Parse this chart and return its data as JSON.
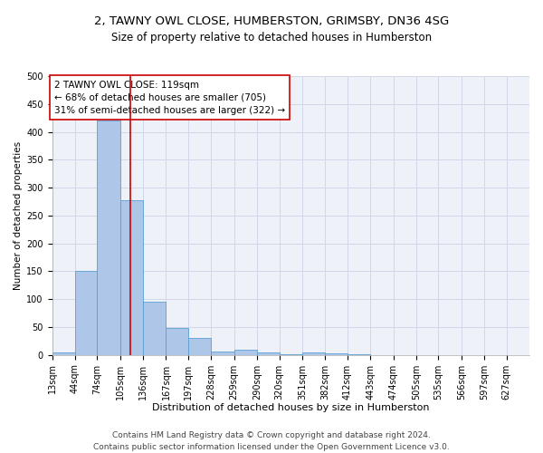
{
  "title1": "2, TAWNY OWL CLOSE, HUMBERSTON, GRIMSBY, DN36 4SG",
  "title2": "Size of property relative to detached houses in Humberston",
  "xlabel": "Distribution of detached houses by size in Humberston",
  "ylabel": "Number of detached properties",
  "footer1": "Contains HM Land Registry data © Crown copyright and database right 2024.",
  "footer2": "Contains public sector information licensed under the Open Government Licence v3.0.",
  "annotation_line1": "2 TAWNY OWL CLOSE: 119sqm",
  "annotation_line2": "← 68% of detached houses are smaller (705)",
  "annotation_line3": "31% of semi-detached houses are larger (322) →",
  "red_line_x": 119,
  "categories": [
    "13sqm",
    "44sqm",
    "74sqm",
    "105sqm",
    "136sqm",
    "167sqm",
    "197sqm",
    "228sqm",
    "259sqm",
    "290sqm",
    "320sqm",
    "351sqm",
    "382sqm",
    "412sqm",
    "443sqm",
    "474sqm",
    "505sqm",
    "535sqm",
    "566sqm",
    "597sqm",
    "627sqm"
  ],
  "bin_edges": [
    13,
    44,
    74,
    105,
    136,
    167,
    197,
    228,
    259,
    290,
    320,
    351,
    382,
    412,
    443,
    474,
    505,
    535,
    566,
    597,
    627,
    658
  ],
  "values": [
    5,
    150,
    420,
    278,
    95,
    48,
    30,
    6,
    9,
    5,
    2,
    4,
    3,
    1,
    0,
    0,
    0,
    0,
    0,
    0,
    0
  ],
  "bar_color": "#aec6e8",
  "bar_edge_color": "#5a9fd4",
  "red_line_color": "#cc0000",
  "grid_color": "#d0d8e8",
  "background_color": "#eef2f8",
  "annotation_box_edge": "#cc0000",
  "ylim": [
    0,
    500
  ],
  "yticks": [
    0,
    50,
    100,
    150,
    200,
    250,
    300,
    350,
    400,
    450,
    500
  ],
  "title1_fontsize": 9.5,
  "title2_fontsize": 8.5,
  "xlabel_fontsize": 8,
  "ylabel_fontsize": 7.5,
  "tick_fontsize": 7,
  "annotation_fontsize": 7.5,
  "footer_fontsize": 6.5
}
